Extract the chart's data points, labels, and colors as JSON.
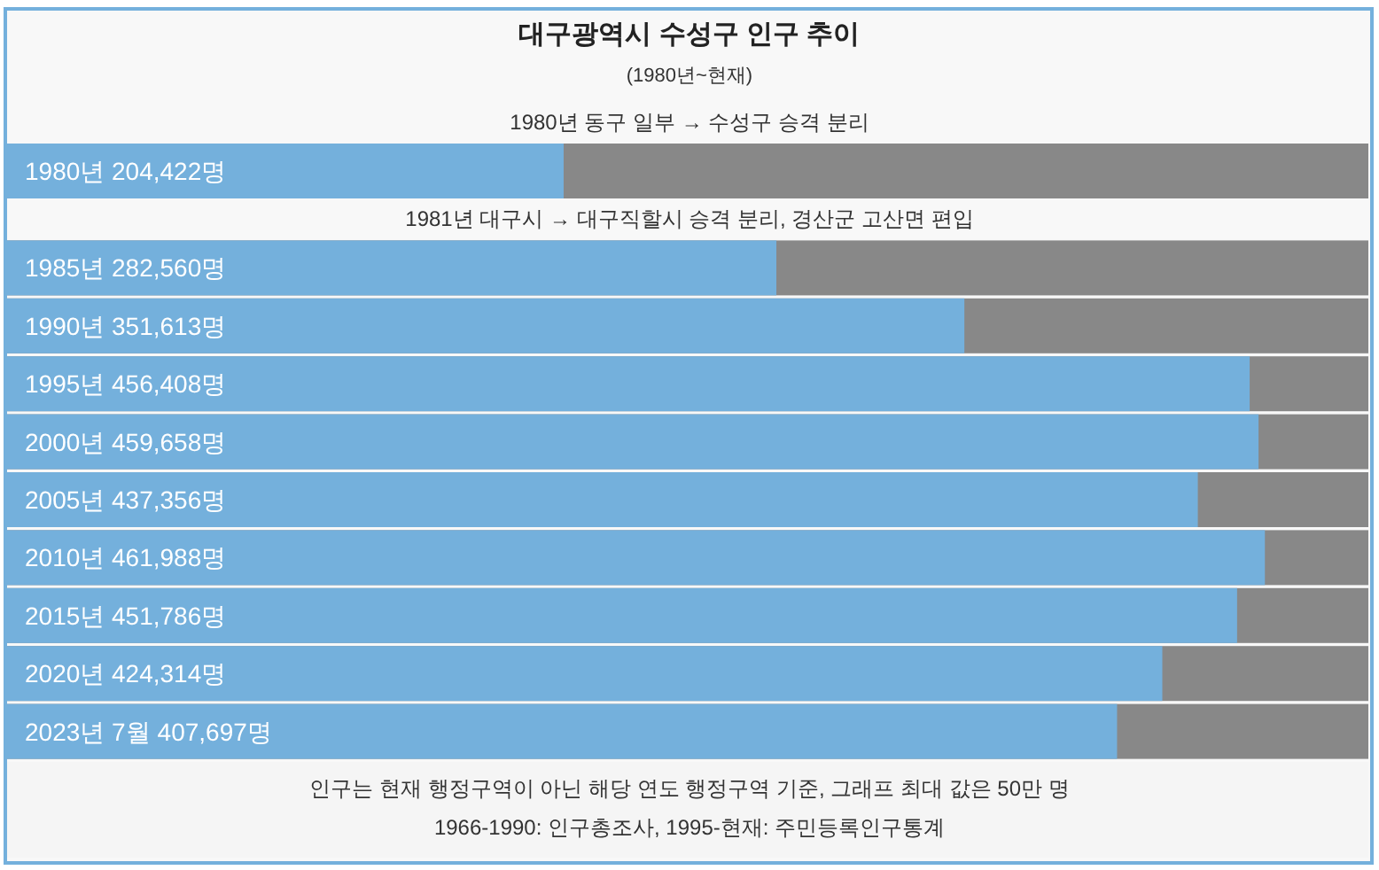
{
  "chart_data": {
    "type": "bar",
    "orientation": "horizontal",
    "title": "대구광역시 수성구 인구 추이",
    "subtitle": "(1980년~현재)",
    "categories": [
      "1980년",
      "1985년",
      "1990년",
      "1995년",
      "2000년",
      "2005년",
      "2010년",
      "2015년",
      "2020년",
      "2023년 7월"
    ],
    "values": [
      204422,
      282560,
      351613,
      456408,
      459658,
      437356,
      461988,
      451786,
      424314,
      407697
    ],
    "value_labels": [
      "204,422명",
      "282,560명",
      "351,613명",
      "456,408명",
      "459,658명",
      "437,356명",
      "461,988명",
      "451,786명",
      "424,314명",
      "407,697명"
    ],
    "color": "#74b0dc",
    "xlim": [
      0,
      500000
    ],
    "annotations": [
      "1980년 동구 일부 → 수성구 승격 분리",
      "1981년 대구시 → 대구직할시 승격 분리, 경산군 고산면 편입",
      "인구는 현재 행정구역이 아닌 해당 연도 행정구역 기준, 그래프 최대 값은 50만 명",
      "1966-1990: 인구총조사, 1995-현재: 주민등록인구통계"
    ]
  }
}
